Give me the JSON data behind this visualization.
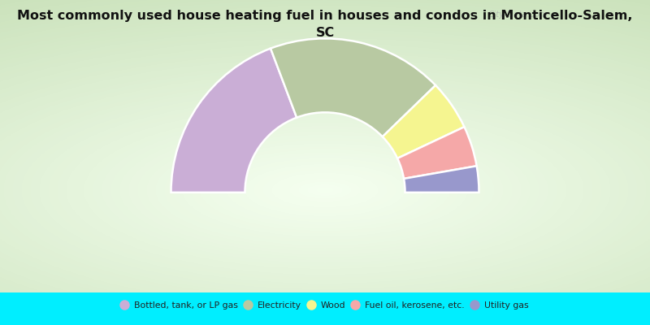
{
  "title": "Most commonly used house heating fuel in houses and condos in Monticello-Salem,\nSC",
  "segments": [
    {
      "label": "Bottled, tank, or LP gas",
      "value": 38.5,
      "color": "#caaed6"
    },
    {
      "label": "Electricity",
      "value": 37.0,
      "color": "#b8c9a2"
    },
    {
      "label": "Wood",
      "value": 10.5,
      "color": "#f5f590"
    },
    {
      "label": "Fuel oil, kerosene, etc.",
      "value": 8.5,
      "color": "#f5a8a8"
    },
    {
      "label": "Utility gas",
      "value": 5.5,
      "color": "#9898cc"
    }
  ],
  "bg_color": "#00eeff",
  "watermark": "City-Data.com",
  "title_fontsize": 11.5,
  "outer_r": 1.0,
  "inner_r": 0.52
}
